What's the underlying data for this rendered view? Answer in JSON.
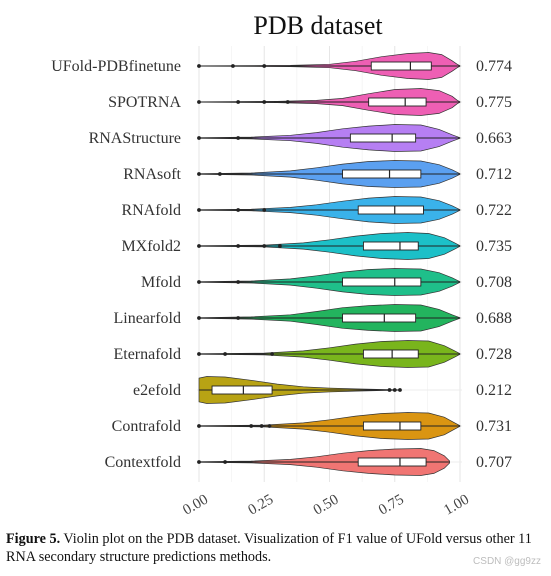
{
  "chart_data": {
    "type": "violin",
    "title": "PDB dataset",
    "xlabel": "",
    "ylabel": "",
    "xlim": [
      0,
      1
    ],
    "x_ticks": [
      "0.00",
      "0.25",
      "0.50",
      "0.75",
      "1.00"
    ],
    "grid": true,
    "series": [
      {
        "name": "UFold-PDBfinetune",
        "mean": "0.774",
        "color": "#ee5fb4",
        "box": {
          "q1": 0.66,
          "median": 0.81,
          "q3": 0.89
        },
        "outliers": [
          0.0,
          0.13,
          0.25
        ],
        "density": [
          [
            0.0,
            0.2
          ],
          [
            0.35,
            0.6
          ],
          [
            0.5,
            1.6
          ],
          [
            0.6,
            4.5
          ],
          [
            0.7,
            9
          ],
          [
            0.8,
            12
          ],
          [
            0.88,
            13
          ],
          [
            0.93,
            11
          ],
          [
            0.97,
            5
          ],
          [
            0.99,
            1.5
          ],
          [
            1.0,
            0.3
          ]
        ]
      },
      {
        "name": "SPOTRNA",
        "mean": "0.775",
        "color": "#ee5fb4",
        "box": {
          "q1": 0.65,
          "median": 0.79,
          "q3": 0.87
        },
        "outliers": [
          0.0,
          0.15,
          0.25,
          0.34
        ],
        "density": [
          [
            0.0,
            0.2
          ],
          [
            0.3,
            0.6
          ],
          [
            0.45,
            1.5
          ],
          [
            0.55,
            3.5
          ],
          [
            0.65,
            8
          ],
          [
            0.75,
            12
          ],
          [
            0.85,
            13
          ],
          [
            0.92,
            11
          ],
          [
            0.97,
            5.5
          ],
          [
            0.99,
            1.5
          ],
          [
            1.0,
            0.3
          ]
        ]
      },
      {
        "name": "RNAStructure",
        "mean": "0.663",
        "color": "#b67ff3",
        "box": {
          "q1": 0.58,
          "median": 0.74,
          "q3": 0.83
        },
        "outliers": [
          0.0,
          0.15
        ],
        "density": [
          [
            0.0,
            0.3
          ],
          [
            0.2,
            0.8
          ],
          [
            0.35,
            2.5
          ],
          [
            0.45,
            5
          ],
          [
            0.55,
            8.5
          ],
          [
            0.65,
            11
          ],
          [
            0.75,
            12.5
          ],
          [
            0.85,
            12
          ],
          [
            0.92,
            8
          ],
          [
            0.97,
            3
          ],
          [
            1.0,
            0.3
          ]
        ]
      },
      {
        "name": "RNAsoft",
        "mean": "0.712",
        "color": "#5ba0f0",
        "box": {
          "q1": 0.55,
          "median": 0.73,
          "q3": 0.85
        },
        "outliers": [
          0.0,
          0.08
        ],
        "density": [
          [
            0.0,
            0.3
          ],
          [
            0.2,
            1
          ],
          [
            0.35,
            3
          ],
          [
            0.45,
            6
          ],
          [
            0.55,
            9.5
          ],
          [
            0.65,
            12
          ],
          [
            0.75,
            13
          ],
          [
            0.85,
            12.5
          ],
          [
            0.92,
            9
          ],
          [
            0.97,
            4
          ],
          [
            1.0,
            0.3
          ]
        ]
      },
      {
        "name": "RNAfold",
        "mean": "0.722",
        "color": "#3ab2ea",
        "box": {
          "q1": 0.61,
          "median": 0.75,
          "q3": 0.86
        },
        "outliers": [
          0.0,
          0.15,
          0.25
        ],
        "density": [
          [
            0.0,
            0.3
          ],
          [
            0.2,
            0.8
          ],
          [
            0.35,
            2.5
          ],
          [
            0.45,
            5
          ],
          [
            0.55,
            8.5
          ],
          [
            0.65,
            11.5
          ],
          [
            0.75,
            13
          ],
          [
            0.85,
            12.5
          ],
          [
            0.92,
            9
          ],
          [
            0.97,
            4
          ],
          [
            1.0,
            0.3
          ]
        ]
      },
      {
        "name": "MXfold2",
        "mean": "0.735",
        "color": "#1cc0c8",
        "box": {
          "q1": 0.63,
          "median": 0.77,
          "q3": 0.84
        },
        "outliers": [
          0.0,
          0.15,
          0.25,
          0.31
        ],
        "density": [
          [
            0.0,
            0.3
          ],
          [
            0.25,
            0.9
          ],
          [
            0.4,
            3
          ],
          [
            0.5,
            6
          ],
          [
            0.6,
            9.5
          ],
          [
            0.7,
            12
          ],
          [
            0.8,
            13
          ],
          [
            0.88,
            12
          ],
          [
            0.94,
            8
          ],
          [
            0.98,
            3
          ],
          [
            1.0,
            0.3
          ]
        ]
      },
      {
        "name": "Mfold",
        "mean": "0.708",
        "color": "#1fbf8a",
        "box": {
          "q1": 0.55,
          "median": 0.75,
          "q3": 0.85
        },
        "outliers": [
          0.0,
          0.15
        ],
        "density": [
          [
            0.0,
            0.3
          ],
          [
            0.2,
            1
          ],
          [
            0.35,
            3
          ],
          [
            0.45,
            6
          ],
          [
            0.55,
            9.5
          ],
          [
            0.65,
            12
          ],
          [
            0.75,
            13
          ],
          [
            0.85,
            12.5
          ],
          [
            0.92,
            9
          ],
          [
            0.97,
            4
          ],
          [
            1.0,
            0.3
          ]
        ]
      },
      {
        "name": "Linearfold",
        "mean": "0.688",
        "color": "#23b45e",
        "box": {
          "q1": 0.55,
          "median": 0.71,
          "q3": 0.83
        },
        "outliers": [
          0.0,
          0.15
        ],
        "density": [
          [
            0.0,
            0.3
          ],
          [
            0.2,
            1
          ],
          [
            0.35,
            3
          ],
          [
            0.45,
            6
          ],
          [
            0.55,
            9.5
          ],
          [
            0.65,
            11.5
          ],
          [
            0.75,
            12.5
          ],
          [
            0.85,
            12
          ],
          [
            0.92,
            8
          ],
          [
            0.97,
            3
          ],
          [
            1.0,
            0.3
          ]
        ]
      },
      {
        "name": "Eternafold",
        "mean": "0.728",
        "color": "#79b51c",
        "box": {
          "q1": 0.63,
          "median": 0.74,
          "q3": 0.84
        },
        "outliers": [
          0.0,
          0.1,
          0.28
        ],
        "density": [
          [
            0.0,
            0.3
          ],
          [
            0.25,
            0.9
          ],
          [
            0.4,
            3
          ],
          [
            0.5,
            6
          ],
          [
            0.6,
            9.5
          ],
          [
            0.7,
            12
          ],
          [
            0.8,
            13
          ],
          [
            0.88,
            12.5
          ],
          [
            0.94,
            8
          ],
          [
            0.98,
            3
          ],
          [
            1.0,
            0.3
          ]
        ]
      },
      {
        "name": "e2efold",
        "mean": "0.212",
        "color": "#b8a314",
        "box": {
          "q1": 0.05,
          "median": 0.17,
          "q3": 0.28
        },
        "outliers": [
          0.73,
          0.75,
          0.77
        ],
        "density": [
          [
            0.0,
            11
          ],
          [
            0.03,
            12.5
          ],
          [
            0.1,
            12
          ],
          [
            0.2,
            9
          ],
          [
            0.3,
            5.5
          ],
          [
            0.4,
            3
          ],
          [
            0.5,
            1.8
          ],
          [
            0.6,
            1
          ],
          [
            0.7,
            0.5
          ],
          [
            0.77,
            0.2
          ]
        ]
      },
      {
        "name": "Contrafold",
        "mean": "0.731",
        "color": "#da9512",
        "box": {
          "q1": 0.63,
          "median": 0.77,
          "q3": 0.85
        },
        "outliers": [
          0.0,
          0.2,
          0.24,
          0.27
        ],
        "density": [
          [
            0.0,
            0.3
          ],
          [
            0.25,
            0.9
          ],
          [
            0.4,
            3
          ],
          [
            0.5,
            6
          ],
          [
            0.6,
            9.5
          ],
          [
            0.7,
            12
          ],
          [
            0.8,
            13
          ],
          [
            0.88,
            12.5
          ],
          [
            0.94,
            8.5
          ],
          [
            0.98,
            3
          ],
          [
            1.0,
            0.3
          ]
        ]
      },
      {
        "name": "Contextfold",
        "mean": "0.707",
        "color": "#f07573",
        "box": {
          "q1": 0.61,
          "median": 0.77,
          "q3": 0.87
        },
        "outliers": [
          0.0,
          0.1
        ],
        "density": [
          [
            0.0,
            0.3
          ],
          [
            0.2,
            0.9
          ],
          [
            0.35,
            2.5
          ],
          [
            0.45,
            5
          ],
          [
            0.55,
            8.5
          ],
          [
            0.65,
            11
          ],
          [
            0.75,
            12.5
          ],
          [
            0.85,
            13
          ],
          [
            0.9,
            11
          ],
          [
            0.94,
            6
          ],
          [
            0.96,
            1
          ]
        ]
      }
    ]
  },
  "caption": {
    "label": "Figure 5.",
    "text": " Violin plot on the PDB dataset. Visualization of F1 value of UFold versus other 11 RNA secondary structure predictions methods."
  },
  "watermark": "CSDN @gg9zz"
}
